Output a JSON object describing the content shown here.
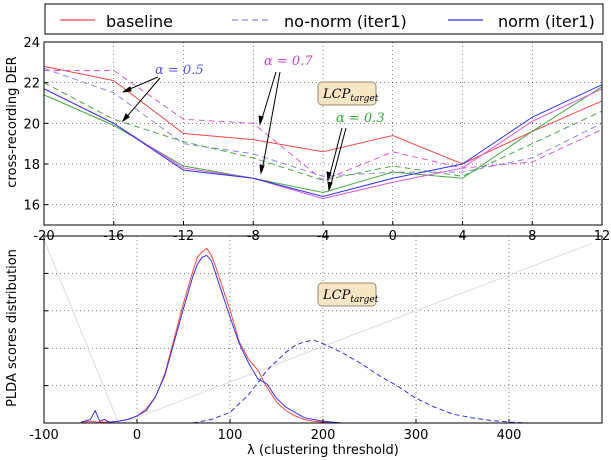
{
  "legend": {
    "items": [
      {
        "label": "baseline",
        "color": "#ff4444",
        "dash": "solid"
      },
      {
        "label": "no-norm (iter1)",
        "color": "#8888ee",
        "dash": "dashed"
      },
      {
        "label": "norm (iter1)",
        "color": "#3333ee",
        "dash": "solid"
      }
    ]
  },
  "chart_data": [
    {
      "type": "line",
      "ylabel": "cross-recording DER",
      "xlabel": "",
      "x": [
        -20,
        -16,
        -12,
        -8,
        -4,
        0,
        4,
        8,
        12
      ],
      "xticks": [
        "-20",
        "-16",
        "-12",
        "-8",
        "-4",
        "0",
        "4",
        "8",
        "12"
      ],
      "xlim": [
        -20,
        12
      ],
      "ylim": [
        15,
        24
      ],
      "yticks": [
        "16",
        "18",
        "20",
        "22",
        "24"
      ],
      "grid": true,
      "series": [
        {
          "name": "baseline",
          "color": "#ff4444",
          "dash": "solid",
          "values": [
            22.8,
            22.1,
            19.5,
            19.2,
            18.6,
            19.4,
            18.0,
            19.6,
            21.1
          ]
        },
        {
          "name": "no-norm (iter1)",
          "color": "#8888ee",
          "dash": "dashed",
          "values": [
            22.7,
            21.5,
            19.0,
            18.5,
            17.4,
            17.6,
            17.6,
            18.3,
            20.0
          ]
        },
        {
          "color": "#dd55dd",
          "dash": "dashed",
          "values": [
            22.6,
            22.6,
            20.2,
            20.0,
            17.2,
            18.6,
            17.8,
            18.1,
            19.7
          ]
        },
        {
          "color": "#44aa44",
          "dash": "dashed",
          "values": [
            22.0,
            20.2,
            19.1,
            18.3,
            17.2,
            17.9,
            17.4,
            19.0,
            20.6
          ]
        },
        {
          "color": "#44aa44",
          "dash": "solid",
          "values": [
            21.4,
            19.9,
            17.9,
            17.3,
            16.6,
            17.6,
            17.3,
            19.6,
            21.8
          ]
        },
        {
          "color": "#dd55dd",
          "dash": "solid",
          "values": [
            21.7,
            20.0,
            17.8,
            17.3,
            16.3,
            17.1,
            17.8,
            20.1,
            21.7
          ]
        },
        {
          "name": "norm (iter1)",
          "color": "#3333ee",
          "dash": "solid",
          "values": [
            21.7,
            20.0,
            17.7,
            17.3,
            16.4,
            17.3,
            18.0,
            20.3,
            21.9
          ]
        }
      ],
      "annotations": [
        {
          "text": "α = 0.5",
          "color": "#5555dd"
        },
        {
          "text": "α = 0.7",
          "color": "#cc44cc"
        },
        {
          "text": "α = 0.3",
          "color": "#33aa33"
        },
        {
          "text_main": "LCP",
          "text_sub": "target"
        }
      ]
    },
    {
      "type": "line",
      "ylabel": "PLDA scores distribution",
      "xlabel": "λ (clustering threshold)",
      "xlim": [
        -100,
        500
      ],
      "xticks": [
        "-100",
        "0",
        "100",
        "200",
        "300",
        "400"
      ],
      "grid": true,
      "series": [
        {
          "name": "baseline",
          "color": "#ff4444",
          "dash": "solid",
          "x": [
            -60,
            -50,
            -40,
            -30,
            -20,
            -10,
            0,
            10,
            20,
            30,
            40,
            50,
            60,
            65,
            70,
            75,
            80,
            85,
            90,
            100,
            110,
            120,
            130,
            140,
            150,
            160,
            170,
            180,
            190,
            200,
            210,
            220
          ],
          "y": [
            0.005,
            0.01,
            0.005,
            0.005,
            0.01,
            0.02,
            0.04,
            0.08,
            0.15,
            0.28,
            0.48,
            0.68,
            0.86,
            0.94,
            0.97,
            0.99,
            0.95,
            0.88,
            0.8,
            0.64,
            0.46,
            0.36,
            0.3,
            0.2,
            0.12,
            0.07,
            0.04,
            0.02,
            0.01,
            0.005,
            0.003,
            0.0
          ]
        },
        {
          "name": "norm (iter1)",
          "color": "#3333ee",
          "dash": "solid",
          "x": [
            -60,
            -50,
            -45,
            -40,
            -35,
            -30,
            -20,
            -10,
            0,
            10,
            20,
            30,
            40,
            50,
            60,
            65,
            70,
            75,
            80,
            85,
            90,
            100,
            110,
            120,
            130,
            140,
            150,
            160,
            170,
            180,
            190,
            200,
            210,
            220
          ],
          "y": [
            0.005,
            0.02,
            0.07,
            0.01,
            0.02,
            0.005,
            0.01,
            0.02,
            0.04,
            0.07,
            0.15,
            0.27,
            0.46,
            0.65,
            0.83,
            0.9,
            0.94,
            0.95,
            0.92,
            0.84,
            0.76,
            0.6,
            0.45,
            0.34,
            0.25,
            0.22,
            0.14,
            0.09,
            0.06,
            0.03,
            0.02,
            0.01,
            0.005,
            0.0
          ]
        },
        {
          "name": "no-norm (iter1)",
          "color": "#3333ee",
          "dash": "dashed",
          "x": [
            60,
            80,
            100,
            120,
            140,
            160,
            170,
            180,
            190,
            200,
            220,
            240,
            260,
            280,
            300,
            320,
            340,
            360,
            380,
            400,
            420
          ],
          "y": [
            0.0,
            0.02,
            0.06,
            0.16,
            0.3,
            0.4,
            0.44,
            0.46,
            0.47,
            0.45,
            0.4,
            0.34,
            0.27,
            0.21,
            0.14,
            0.09,
            0.05,
            0.03,
            0.015,
            0.005,
            0.0
          ]
        },
        {
          "color": "#dddddd",
          "dash": "solid",
          "x": [
            -100,
            -20
          ],
          "y": [
            1.04,
            0.0
          ]
        },
        {
          "color": "#dddddd",
          "dash": "solid",
          "x": [
            -15,
            490
          ],
          "y": [
            0.0,
            1.02
          ]
        }
      ],
      "ylim": [
        0,
        1.06
      ],
      "annotations": [
        {
          "text_main": "LCP",
          "text_sub": "target"
        }
      ]
    }
  ]
}
